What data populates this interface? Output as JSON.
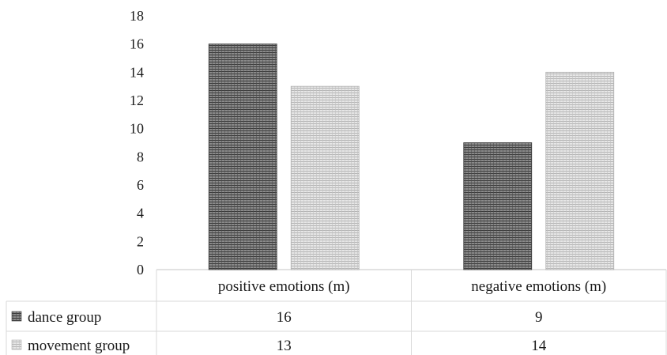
{
  "chart_data": {
    "type": "bar",
    "categories": [
      "positive emotions (m)",
      "negative emotions (m)"
    ],
    "series": [
      {
        "name": "dance group",
        "values": [
          16,
          9
        ],
        "color": "#555555",
        "pattern": "dark-hatch"
      },
      {
        "name": "movement group",
        "values": [
          13,
          14
        ],
        "color": "#c8c8c8",
        "pattern": "light-hatch"
      }
    ],
    "ylim": [
      0,
      18
    ],
    "yticks": [
      0,
      2,
      4,
      6,
      8,
      10,
      12,
      14,
      16,
      18
    ],
    "grid": false,
    "legend": "data-table",
    "title": "",
    "xlabel": "",
    "ylabel": ""
  }
}
